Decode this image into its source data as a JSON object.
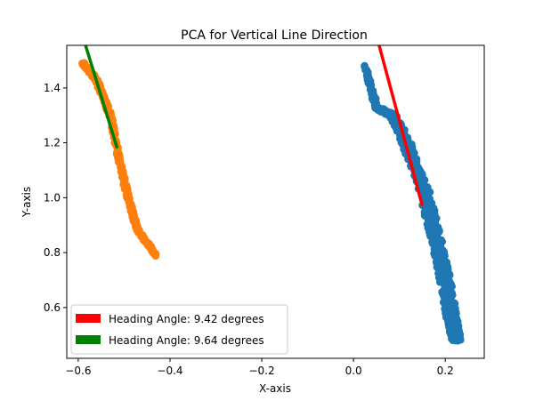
{
  "chart_data": {
    "type": "scatter",
    "title": "PCA for Vertical Line Direction",
    "xlabel": "X-axis",
    "ylabel": "Y-axis",
    "xlim": [
      -0.625,
      0.285
    ],
    "ylim": [
      0.415,
      1.555
    ],
    "x_ticks": [
      -0.6,
      -0.4,
      -0.2,
      0.0,
      0.2
    ],
    "x_tick_labels": [
      "−0.6",
      "−0.4",
      "−0.2",
      "0.0",
      "0.2"
    ],
    "y_ticks": [
      0.6,
      0.8,
      1.0,
      1.2,
      1.4
    ],
    "y_tick_labels": [
      "0.6",
      "0.8",
      "1.0",
      "1.2",
      "1.4"
    ],
    "grid": false,
    "legend_position": "lower-left",
    "series": [
      {
        "kind": "scatter",
        "color": "#1f77b4",
        "band": [
          [
            0.025,
            1.48,
            0.0,
            0.03
          ],
          [
            0.05,
            1.33,
            0.0,
            0.05
          ],
          [
            0.085,
            1.3,
            0.0,
            0.1
          ],
          [
            0.12,
            1.18,
            0.0,
            0.12
          ],
          [
            0.15,
            1.05,
            0.0,
            0.13
          ],
          [
            0.17,
            0.92,
            0.0,
            0.14
          ],
          [
            0.19,
            0.78,
            0.0,
            0.14
          ],
          [
            0.205,
            0.66,
            0.0,
            0.14
          ],
          [
            0.215,
            0.55,
            0.0,
            0.14
          ],
          [
            0.225,
            0.48,
            0.0,
            0.11
          ]
        ]
      },
      {
        "kind": "scatter",
        "color": "#ff7f0e",
        "band": [
          [
            -0.59,
            1.49,
            0.0,
            0.025
          ],
          [
            -0.56,
            1.43,
            0.0,
            0.035
          ],
          [
            -0.53,
            1.3,
            0.0,
            0.035
          ],
          [
            -0.51,
            1.13,
            0.0,
            0.035
          ],
          [
            -0.49,
            0.99,
            0.0,
            0.035
          ],
          [
            -0.47,
            0.88,
            0.0,
            0.03
          ],
          [
            -0.43,
            0.79,
            0.0,
            0.02
          ]
        ]
      }
    ],
    "lines": [
      {
        "name": "Heading Angle: 9.42 degrees",
        "color": "#ff0000",
        "x": [
          0.055,
          0.15
        ],
        "y": [
          1.56,
          0.97
        ]
      },
      {
        "name": "Heading Angle: 9.64 degrees",
        "color": "#008000",
        "x": [
          -0.585,
          -0.515
        ],
        "y": [
          1.56,
          1.18
        ]
      }
    ],
    "legend": [
      {
        "label": "Heading Angle: 9.42 degrees",
        "color": "#ff0000"
      },
      {
        "label": "Heading Angle: 9.64 degrees",
        "color": "#008000"
      }
    ]
  }
}
